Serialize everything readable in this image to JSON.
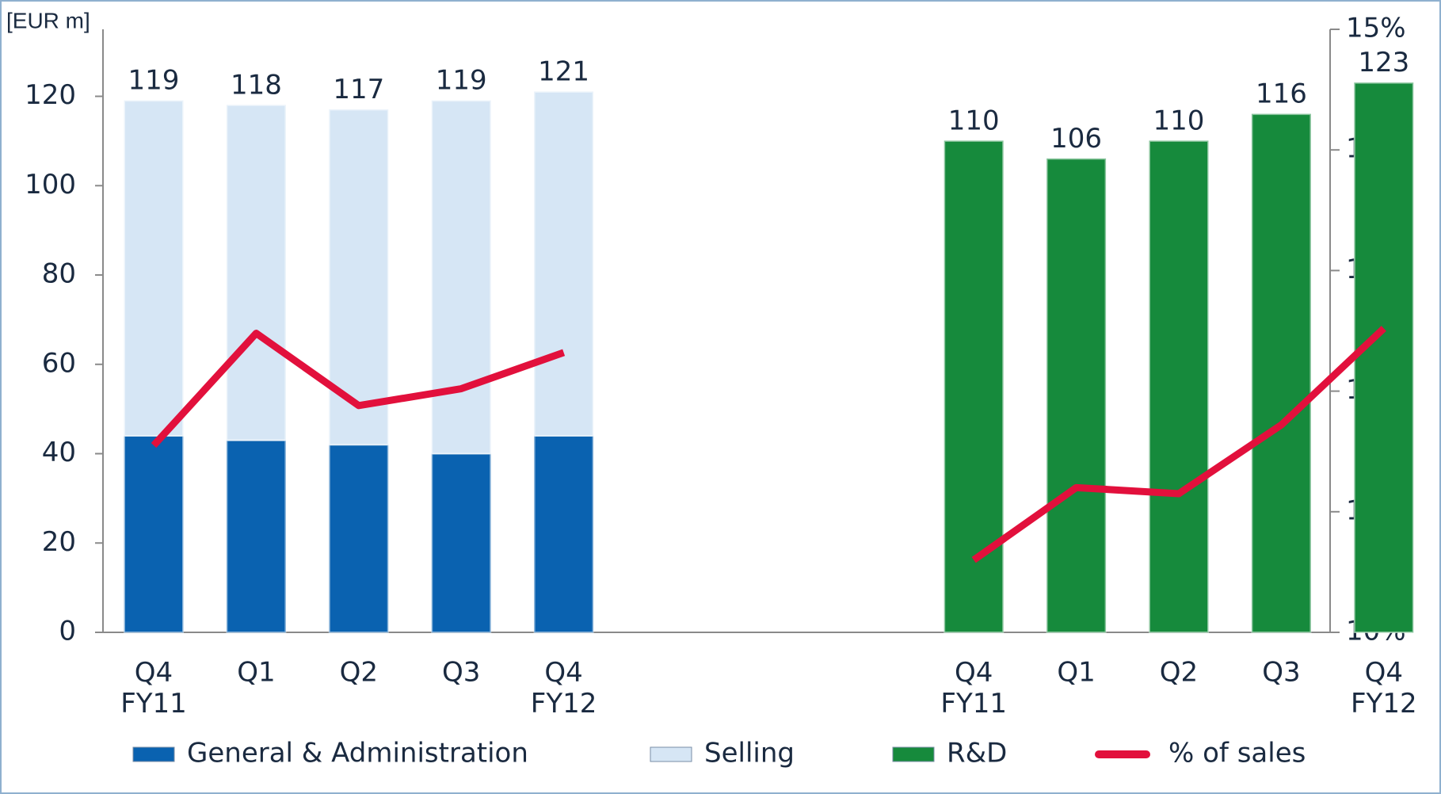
{
  "chart_data": {
    "type": "bar",
    "y_label": "[EUR m]",
    "categories": [
      "Q4\nFY11",
      "Q1",
      "Q2",
      "Q3",
      "Q4\nFY12",
      null,
      null,
      null,
      "Q4\nFY11",
      "Q1",
      "Q2",
      "Q3",
      "Q4\nFY12"
    ],
    "series": [
      {
        "name": "General & Administration",
        "color": "#0a62b0",
        "values": [
          44,
          43,
          42,
          40,
          44,
          null,
          null,
          null,
          null,
          null,
          null,
          null,
          null
        ]
      },
      {
        "name": "Selling",
        "color": "#d6e6f5",
        "values": [
          75,
          75,
          75,
          79,
          77,
          null,
          null,
          null,
          null,
          null,
          null,
          null,
          null
        ]
      },
      {
        "name": "R&D",
        "color": "#168a3c",
        "values": [
          null,
          null,
          null,
          null,
          null,
          null,
          null,
          null,
          110,
          106,
          110,
          116,
          123
        ]
      },
      {
        "name": "% of sales",
        "type": "line",
        "axis": "y2",
        "color": "#e2103c",
        "values": [
          11.55,
          12.48,
          11.88,
          12.02,
          12.32,
          null,
          null,
          null,
          10.6,
          11.2,
          11.15,
          11.72,
          12.52
        ]
      }
    ],
    "totals": [
      119,
      118,
      117,
      119,
      121,
      null,
      null,
      null,
      110,
      106,
      110,
      116,
      123
    ],
    "ylim": [
      0,
      135
    ],
    "yticks": [
      0,
      20,
      40,
      60,
      80,
      100,
      120
    ],
    "y2lim": [
      10,
      15
    ],
    "y2ticks": [
      {
        "value": 10,
        "label": "10%"
      },
      {
        "value": 11,
        "label": "11%"
      },
      {
        "value": 12,
        "label": "12%"
      },
      {
        "value": 13,
        "label": "13%"
      },
      {
        "value": 14,
        "label": "14%"
      },
      {
        "value": 15,
        "label": "15%"
      }
    ],
    "legend": "bottom"
  }
}
